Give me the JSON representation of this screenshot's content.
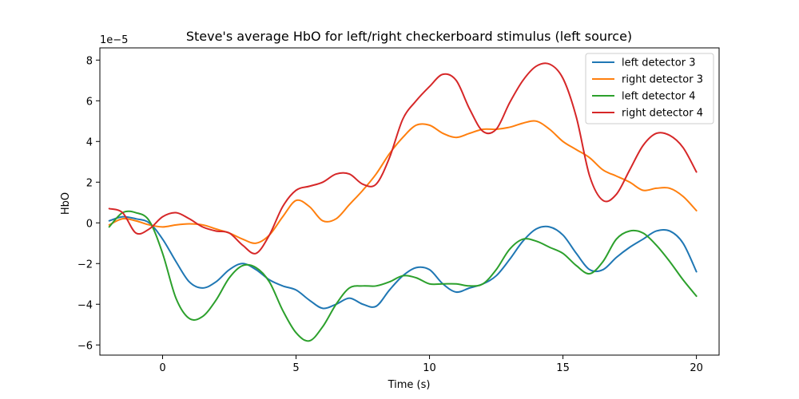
{
  "chart_data": {
    "type": "line",
    "title": "Steve's average HbO for left/right checkerboard stimulus (left source)",
    "xlabel": "Time (s)",
    "ylabel": "HbO",
    "y_offset_label": "1e−5",
    "xlim": [
      -2.35,
      20.85
    ],
    "ylim": [
      -6.5,
      8.6
    ],
    "x_ticks": [
      0,
      5,
      10,
      15,
      20
    ],
    "x_tick_labels": [
      "0",
      "5",
      "10",
      "15",
      "20"
    ],
    "y_ticks": [
      -6,
      -4,
      -2,
      0,
      2,
      4,
      6,
      8
    ],
    "y_tick_labels": [
      "−6",
      "−4",
      "−2",
      "0",
      "2",
      "4",
      "6",
      "8"
    ],
    "grid": false,
    "legend_position": "top-right",
    "series": [
      {
        "name": "left detector 3",
        "color": "#1f77b4",
        "points": [
          [
            -2.0,
            0.1
          ],
          [
            -1.5,
            0.3
          ],
          [
            -1.0,
            0.2
          ],
          [
            -0.5,
            0.0
          ],
          [
            0.0,
            -0.8
          ],
          [
            0.5,
            -1.9
          ],
          [
            1.0,
            -2.9
          ],
          [
            1.5,
            -3.2
          ],
          [
            2.0,
            -2.9
          ],
          [
            2.5,
            -2.3
          ],
          [
            3.0,
            -2.0
          ],
          [
            3.5,
            -2.3
          ],
          [
            4.0,
            -2.8
          ],
          [
            4.5,
            -3.1
          ],
          [
            5.0,
            -3.3
          ],
          [
            5.5,
            -3.8
          ],
          [
            6.0,
            -4.2
          ],
          [
            6.5,
            -4.0
          ],
          [
            7.0,
            -3.7
          ],
          [
            7.5,
            -4.0
          ],
          [
            8.0,
            -4.1
          ],
          [
            8.5,
            -3.3
          ],
          [
            9.0,
            -2.6
          ],
          [
            9.5,
            -2.2
          ],
          [
            10.0,
            -2.3
          ],
          [
            10.5,
            -3.0
          ],
          [
            11.0,
            -3.4
          ],
          [
            11.5,
            -3.2
          ],
          [
            12.0,
            -3.0
          ],
          [
            12.5,
            -2.6
          ],
          [
            13.0,
            -1.8
          ],
          [
            13.5,
            -0.9
          ],
          [
            14.0,
            -0.3
          ],
          [
            14.5,
            -0.2
          ],
          [
            15.0,
            -0.6
          ],
          [
            15.5,
            -1.5
          ],
          [
            16.0,
            -2.3
          ],
          [
            16.5,
            -2.3
          ],
          [
            17.0,
            -1.7
          ],
          [
            17.5,
            -1.2
          ],
          [
            18.0,
            -0.8
          ],
          [
            18.5,
            -0.4
          ],
          [
            19.0,
            -0.4
          ],
          [
            19.5,
            -1.0
          ],
          [
            20.0,
            -2.4
          ]
        ]
      },
      {
        "name": "right detector 3",
        "color": "#ff7f0e",
        "points": [
          [
            -2.0,
            -0.1
          ],
          [
            -1.5,
            0.2
          ],
          [
            -1.0,
            0.1
          ],
          [
            -0.5,
            -0.1
          ],
          [
            0.0,
            -0.2
          ],
          [
            0.5,
            -0.1
          ],
          [
            1.0,
            -0.05
          ],
          [
            1.5,
            -0.1
          ],
          [
            2.0,
            -0.3
          ],
          [
            2.5,
            -0.5
          ],
          [
            3.0,
            -0.8
          ],
          [
            3.5,
            -1.0
          ],
          [
            4.0,
            -0.6
          ],
          [
            4.5,
            0.3
          ],
          [
            5.0,
            1.1
          ],
          [
            5.5,
            0.8
          ],
          [
            6.0,
            0.1
          ],
          [
            6.5,
            0.2
          ],
          [
            7.0,
            0.9
          ],
          [
            7.5,
            1.6
          ],
          [
            8.0,
            2.4
          ],
          [
            8.5,
            3.4
          ],
          [
            9.0,
            4.2
          ],
          [
            9.5,
            4.8
          ],
          [
            10.0,
            4.8
          ],
          [
            10.5,
            4.4
          ],
          [
            11.0,
            4.2
          ],
          [
            11.5,
            4.4
          ],
          [
            12.0,
            4.6
          ],
          [
            12.5,
            4.6
          ],
          [
            13.0,
            4.7
          ],
          [
            13.5,
            4.9
          ],
          [
            14.0,
            5.0
          ],
          [
            14.5,
            4.6
          ],
          [
            15.0,
            4.0
          ],
          [
            15.5,
            3.6
          ],
          [
            16.0,
            3.2
          ],
          [
            16.5,
            2.6
          ],
          [
            17.0,
            2.3
          ],
          [
            17.5,
            2.0
          ],
          [
            18.0,
            1.6
          ],
          [
            18.5,
            1.7
          ],
          [
            19.0,
            1.7
          ],
          [
            19.5,
            1.3
          ],
          [
            20.0,
            0.6
          ]
        ]
      },
      {
        "name": "left detector 4",
        "color": "#2ca02c",
        "points": [
          [
            -2.0,
            -0.2
          ],
          [
            -1.5,
            0.5
          ],
          [
            -1.0,
            0.5
          ],
          [
            -0.5,
            0.1
          ],
          [
            0.0,
            -1.5
          ],
          [
            0.5,
            -3.7
          ],
          [
            1.0,
            -4.7
          ],
          [
            1.5,
            -4.6
          ],
          [
            2.0,
            -3.8
          ],
          [
            2.5,
            -2.7
          ],
          [
            3.0,
            -2.1
          ],
          [
            3.5,
            -2.2
          ],
          [
            4.0,
            -2.9
          ],
          [
            4.5,
            -4.3
          ],
          [
            5.0,
            -5.4
          ],
          [
            5.5,
            -5.8
          ],
          [
            6.0,
            -5.1
          ],
          [
            6.5,
            -4.0
          ],
          [
            7.0,
            -3.2
          ],
          [
            7.5,
            -3.1
          ],
          [
            8.0,
            -3.1
          ],
          [
            8.5,
            -2.9
          ],
          [
            9.0,
            -2.6
          ],
          [
            9.5,
            -2.7
          ],
          [
            10.0,
            -3.0
          ],
          [
            10.5,
            -3.0
          ],
          [
            11.0,
            -3.0
          ],
          [
            11.5,
            -3.1
          ],
          [
            12.0,
            -3.0
          ],
          [
            12.5,
            -2.3
          ],
          [
            13.0,
            -1.3
          ],
          [
            13.5,
            -0.8
          ],
          [
            14.0,
            -0.9
          ],
          [
            14.5,
            -1.2
          ],
          [
            15.0,
            -1.5
          ],
          [
            15.5,
            -2.1
          ],
          [
            16.0,
            -2.5
          ],
          [
            16.5,
            -1.9
          ],
          [
            17.0,
            -0.8
          ],
          [
            17.5,
            -0.4
          ],
          [
            18.0,
            -0.5
          ],
          [
            18.5,
            -1.1
          ],
          [
            19.0,
            -1.9
          ],
          [
            19.5,
            -2.8
          ],
          [
            20.0,
            -3.6
          ]
        ]
      },
      {
        "name": "right detector 4",
        "color": "#d62728",
        "points": [
          [
            -2.0,
            0.7
          ],
          [
            -1.5,
            0.5
          ],
          [
            -1.0,
            -0.5
          ],
          [
            -0.5,
            -0.3
          ],
          [
            0.0,
            0.3
          ],
          [
            0.5,
            0.5
          ],
          [
            1.0,
            0.2
          ],
          [
            1.5,
            -0.2
          ],
          [
            2.0,
            -0.4
          ],
          [
            2.5,
            -0.5
          ],
          [
            3.0,
            -1.1
          ],
          [
            3.5,
            -1.5
          ],
          [
            4.0,
            -0.6
          ],
          [
            4.5,
            0.8
          ],
          [
            5.0,
            1.6
          ],
          [
            5.5,
            1.8
          ],
          [
            6.0,
            2.0
          ],
          [
            6.5,
            2.4
          ],
          [
            7.0,
            2.4
          ],
          [
            7.5,
            1.9
          ],
          [
            8.0,
            1.9
          ],
          [
            8.5,
            3.2
          ],
          [
            9.0,
            5.1
          ],
          [
            9.5,
            6.0
          ],
          [
            10.0,
            6.7
          ],
          [
            10.5,
            7.3
          ],
          [
            11.0,
            7.0
          ],
          [
            11.5,
            5.6
          ],
          [
            12.0,
            4.5
          ],
          [
            12.5,
            4.6
          ],
          [
            13.0,
            5.9
          ],
          [
            13.5,
            7.0
          ],
          [
            14.0,
            7.7
          ],
          [
            14.5,
            7.8
          ],
          [
            15.0,
            7.1
          ],
          [
            15.5,
            5.2
          ],
          [
            16.0,
            2.3
          ],
          [
            16.5,
            1.1
          ],
          [
            17.0,
            1.4
          ],
          [
            17.5,
            2.6
          ],
          [
            18.0,
            3.8
          ],
          [
            18.5,
            4.4
          ],
          [
            19.0,
            4.3
          ],
          [
            19.5,
            3.7
          ],
          [
            20.0,
            2.5
          ]
        ]
      }
    ]
  }
}
